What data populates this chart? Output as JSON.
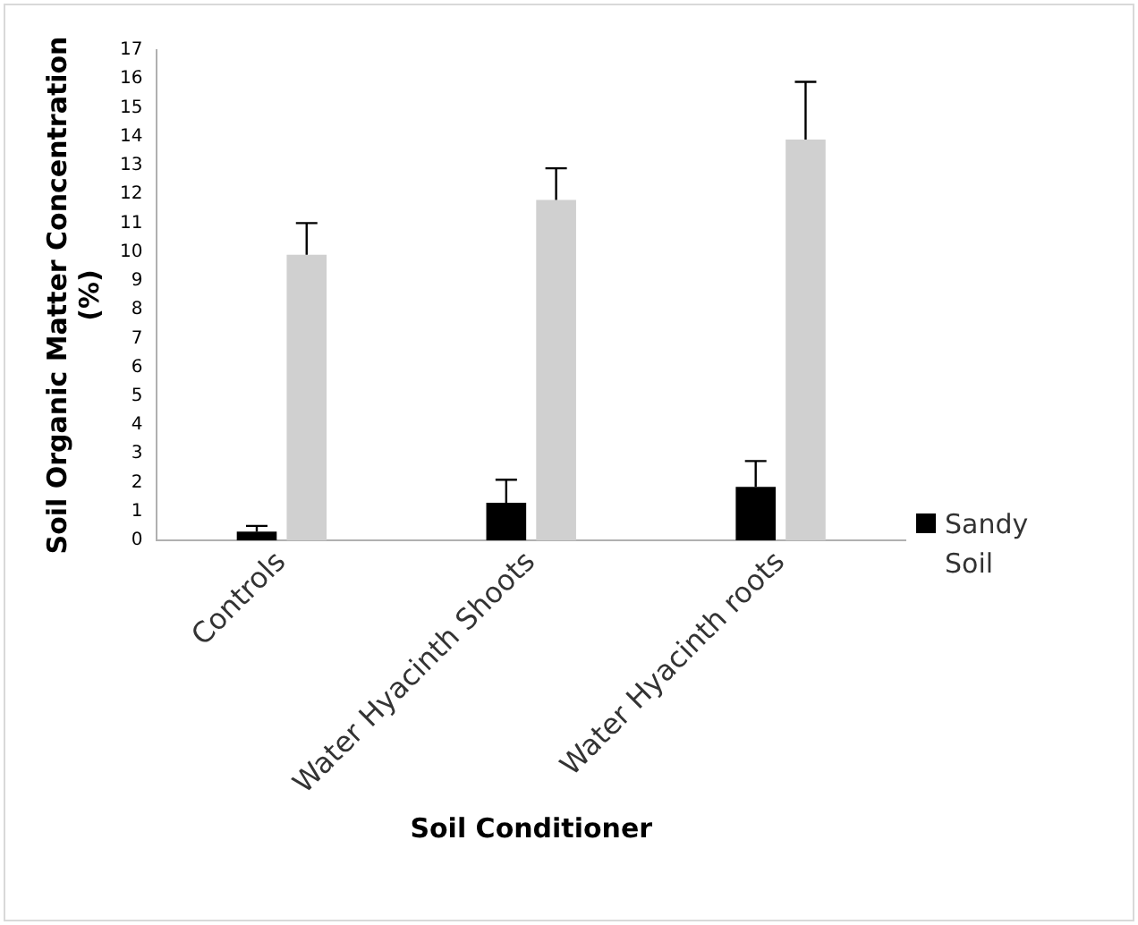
{
  "chart_data": {
    "type": "bar",
    "xlabel": "Soil Conditioner",
    "ylabel": "Soil Organic Matter Concentration (%)",
    "categories": [
      "Controls",
      "Water Hyacinth Shoots",
      "Water Hyacinth roots"
    ],
    "series": [
      {
        "name": "Sandy Soil",
        "color": "#000000",
        "values": [
          0.3,
          1.3,
          1.85
        ],
        "errors": [
          0.2,
          0.8,
          0.9
        ]
      },
      {
        "color": "#d0d0d0",
        "values": [
          9.9,
          11.8,
          13.9
        ],
        "errors": [
          1.1,
          1.1,
          2.0
        ]
      }
    ],
    "ylim": [
      0,
      17
    ],
    "yticks": [
      0,
      1,
      2,
      3,
      4,
      5,
      6,
      7,
      8,
      9,
      10,
      11,
      12,
      13,
      14,
      15,
      16,
      17
    ],
    "grid": false,
    "legend": "right"
  }
}
